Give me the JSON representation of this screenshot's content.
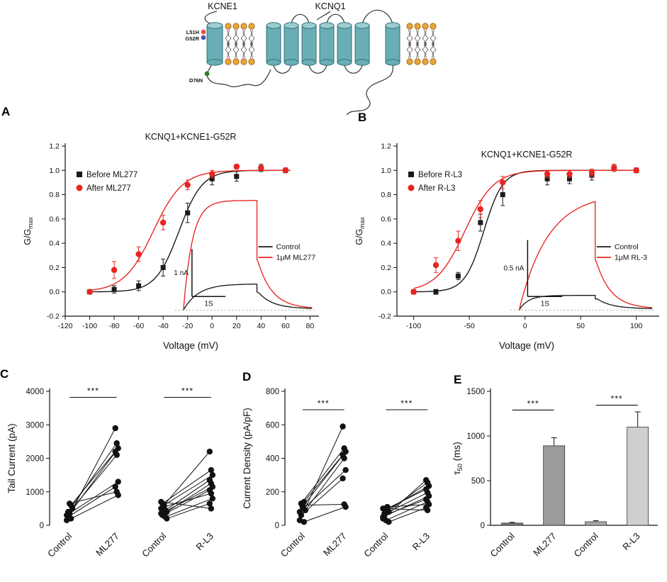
{
  "figure": {
    "panels": [
      "A",
      "B",
      "C",
      "D",
      "E"
    ]
  },
  "schematic": {
    "kcne1_label": "KCNE1",
    "kcnq1_label": "KCNQ1",
    "mutations": [
      {
        "label": "L51H",
        "color": "#e8534a"
      },
      {
        "label": "G52R",
        "color": "#5252b0"
      },
      {
        "label": "D76N",
        "color": "#2e7d32"
      }
    ]
  },
  "chart_data": [
    {
      "id": "A",
      "type": "scatter-line",
      "title": "KCNQ1+KCNE1-G52R",
      "title_y": 21,
      "xlabel": "Voltage (mV)",
      "ylabel": {
        "pre": "G/G",
        "sub": "max",
        "post": ""
      },
      "xlim": [
        -120,
        85
      ],
      "xticks": [
        -120,
        -100,
        -80,
        -60,
        -40,
        -20,
        0,
        20,
        40,
        60,
        80
      ],
      "ylim": [
        -0.2,
        1.2
      ],
      "yticks": [
        -0.2,
        0.0,
        0.2,
        0.4,
        0.6,
        0.8,
        1.0,
        1.2
      ],
      "series": [
        {
          "name": "Before ML277",
          "marker": "square",
          "color": "#1a1a1a",
          "x": [
            -100,
            -80,
            -60,
            -40,
            -20,
            0,
            20,
            40,
            60
          ],
          "y": [
            0.0,
            0.02,
            0.05,
            0.2,
            0.65,
            0.93,
            0.95,
            1.02,
            1.0
          ],
          "err": [
            0.01,
            0.03,
            0.04,
            0.07,
            0.08,
            0.05,
            0.04,
            0.03,
            0.02
          ],
          "fit": {
            "vhalf": -27,
            "k": 9.5,
            "from": -100,
            "to": 64
          }
        },
        {
          "name": "After ML277",
          "marker": "circle",
          "color": "#e8251f",
          "x": [
            -100,
            -80,
            -60,
            -40,
            -20,
            0,
            20,
            40,
            60
          ],
          "y": [
            0.0,
            0.18,
            0.31,
            0.57,
            0.88,
            0.97,
            1.03,
            1.02,
            1.0
          ],
          "err": [
            0.01,
            0.07,
            0.06,
            0.06,
            0.04,
            0.03,
            0.02,
            0.02,
            0.02
          ],
          "fit": {
            "vhalf": -48,
            "k": 12,
            "from": -100,
            "to": 64
          }
        }
      ],
      "inset": {
        "legend": [
          {
            "label": "Control",
            "color": "#1a1a1a"
          },
          {
            "label": "1μM ML277",
            "color": "#e8251f"
          }
        ],
        "vscale_label": "1 nA",
        "hscale_label": "1S",
        "vfrac": 0.42,
        "traces": [
          {
            "color": "#1a1a1a",
            "plateau": 0.23,
            "tau": 0.2,
            "tailv": 0.16
          },
          {
            "color": "#e8251f",
            "plateau": 0.97,
            "tau": 0.12,
            "tailv": 0.45
          }
        ]
      }
    },
    {
      "id": "B",
      "type": "scatter-line",
      "title": "KCNQ1+KCNE1-G52R",
      "title_y": 46,
      "xlabel": "Voltage (mV)",
      "ylabel": {
        "pre": "G/G",
        "sub": "max",
        "post": ""
      },
      "xlim": [
        -115,
        118
      ],
      "xticks": [
        -100,
        -50,
        0,
        50,
        100
      ],
      "ylim": [
        -0.2,
        1.2
      ],
      "yticks": [
        -0.2,
        0.0,
        0.2,
        0.4,
        0.6,
        0.8,
        1.0,
        1.2
      ],
      "series": [
        {
          "name": "Before R-L3",
          "marker": "square",
          "color": "#1a1a1a",
          "x": [
            -100,
            -80,
            -60,
            -40,
            -20,
            20,
            40,
            60,
            80,
            100
          ],
          "y": [
            0.0,
            0.0,
            0.13,
            0.57,
            0.8,
            0.93,
            0.93,
            0.96,
            1.02,
            1.0
          ],
          "err": [
            0.01,
            0.02,
            0.03,
            0.07,
            0.09,
            0.05,
            0.04,
            0.04,
            0.03,
            0.02
          ],
          "fit": {
            "vhalf": -37,
            "k": 8.5,
            "from": -100,
            "to": 102
          }
        },
        {
          "name": "After R-L3",
          "marker": "circle",
          "color": "#e8251f",
          "x": [
            -100,
            -80,
            -60,
            -40,
            -20,
            20,
            40,
            60,
            80,
            100
          ],
          "y": [
            0.0,
            0.22,
            0.42,
            0.68,
            0.9,
            0.97,
            0.97,
            0.98,
            1.02,
            1.0
          ],
          "err": [
            0.01,
            0.06,
            0.08,
            0.07,
            0.05,
            0.03,
            0.03,
            0.03,
            0.03,
            0.02
          ],
          "fit": {
            "vhalf": -54,
            "k": 13,
            "from": -100,
            "to": 102
          }
        }
      ],
      "inset": {
        "legend": [
          {
            "label": "Control",
            "color": "#1a1a1a"
          },
          {
            "label": "1μM RL-3",
            "color": "#e8251f"
          }
        ],
        "vscale_label": "0.5 nA",
        "hscale_label": "1S",
        "vfrac": 0.5,
        "traces": [
          {
            "color": "#1a1a1a",
            "plateau": 0.13,
            "tau": 0.12,
            "tailv": 0.1
          },
          {
            "color": "#e8251f",
            "plateau": 0.96,
            "tau": 0.38,
            "tailv": 0.45
          }
        ]
      }
    },
    {
      "id": "C",
      "type": "paired-scatter",
      "ylabel": "Tail Current (pA)",
      "ylim": [
        0,
        4000
      ],
      "yticks": [
        0,
        1000,
        2000,
        3000,
        4000
      ],
      "groups": [
        {
          "labels": [
            "Control",
            "ML277"
          ],
          "sig": "***",
          "sig_y": 3820,
          "pairs": [
            [
              150,
              2900
            ],
            [
              400,
              2450
            ],
            [
              350,
              2300
            ],
            [
              600,
              2200
            ],
            [
              500,
              2100
            ],
            [
              300,
              1300
            ],
            [
              250,
              1150
            ],
            [
              650,
              1000
            ],
            [
              200,
              900
            ]
          ]
        },
        {
          "labels": [
            "Control",
            "R-L3"
          ],
          "sig": "***",
          "sig_y": 3820,
          "pairs": [
            [
              500,
              2200
            ],
            [
              650,
              1650
            ],
            [
              600,
              1500
            ],
            [
              450,
              1350
            ],
            [
              400,
              1250
            ],
            [
              350,
              1150
            ],
            [
              300,
              1050
            ],
            [
              550,
              950
            ],
            [
              250,
              800
            ],
            [
              200,
              650
            ],
            [
              700,
              500
            ]
          ]
        }
      ]
    },
    {
      "id": "D",
      "type": "paired-scatter",
      "ylabel": "Current Density (pA/pF)",
      "ylim": [
        0,
        800
      ],
      "yticks": [
        0,
        200,
        400,
        600,
        800
      ],
      "groups": [
        {
          "labels": [
            "Control",
            "ML277"
          ],
          "sig": "***",
          "sig_y": 690,
          "pairs": [
            [
              30,
              590
            ],
            [
              130,
              460
            ],
            [
              110,
              440
            ],
            [
              140,
              420
            ],
            [
              90,
              400
            ],
            [
              80,
              330
            ],
            [
              60,
              280
            ],
            [
              120,
              125
            ],
            [
              20,
              110
            ]
          ]
        },
        {
          "labels": [
            "Control",
            "R-L3"
          ],
          "sig": "***",
          "sig_y": 690,
          "pairs": [
            [
              40,
              270
            ],
            [
              70,
              255
            ],
            [
              90,
              235
            ],
            [
              100,
              215
            ],
            [
              80,
              195
            ],
            [
              50,
              175
            ],
            [
              60,
              155
            ],
            [
              30,
              140
            ],
            [
              110,
              125
            ],
            [
              20,
              105
            ],
            [
              100,
              90
            ]
          ]
        }
      ]
    },
    {
      "id": "E",
      "type": "bar",
      "ylabel": {
        "pre": "τ",
        "sub": "50",
        "post": " (ms)"
      },
      "ylim": [
        0,
        1500
      ],
      "yticks": [
        0,
        500,
        1000,
        1500
      ],
      "categories": [
        "Control",
        "ML277",
        "Control",
        "R-L3"
      ],
      "values": [
        25,
        890,
        40,
        1100
      ],
      "errors": [
        8,
        90,
        12,
        170
      ],
      "colors": [
        "#7a7a7a",
        "#9b9b9b",
        "#a9a9a9",
        "#cfcfcf"
      ],
      "sig": [
        {
          "from": 0,
          "to": 1,
          "y": 1290,
          "label": "***"
        },
        {
          "from": 2,
          "to": 3,
          "y": 1345,
          "label": "***"
        }
      ]
    }
  ]
}
